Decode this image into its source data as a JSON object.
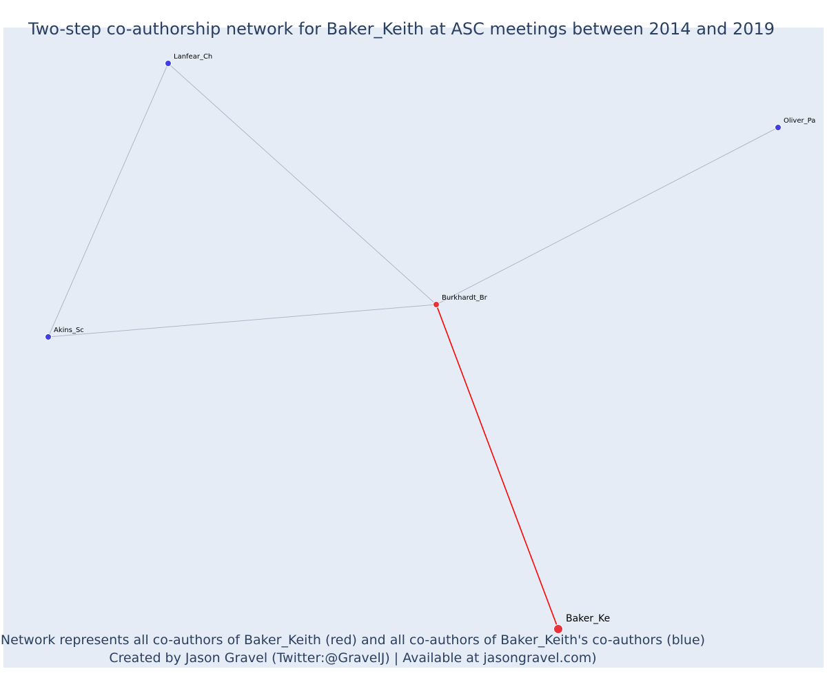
{
  "title": "Two-step co-authorship network for Baker_Keith at ASC meetings between 2014 and 2019",
  "caption": {
    "line1": "Network represents all co-authors of Baker_Keith (red) and all co-authors of Baker_Keith's co-authors (blue)",
    "line2": "Created by Jason Gravel (Twitter:@GravelJ) | Available at jasongravel.com)"
  },
  "colors": {
    "background": "#e5ecf6",
    "text": "#2a3f5f",
    "red_node": "#e8323c",
    "blue_node": "#3f3fdf",
    "red_edge": "#ff0000",
    "gray_edge": "#b4b4c8"
  },
  "chart_data": {
    "type": "network",
    "nodes": [
      {
        "id": "Baker_Ke",
        "label": "Baker_Ke",
        "group": "red",
        "role": "focal"
      },
      {
        "id": "Burkhardt_Br",
        "label": "Burkhardt_Br",
        "group": "red",
        "role": "co-author"
      },
      {
        "id": "Lanfear_Ch",
        "label": "Lanfear_Ch",
        "group": "blue",
        "role": "second-step"
      },
      {
        "id": "Oliver_Pa",
        "label": "Oliver_Pa",
        "group": "blue",
        "role": "second-step"
      },
      {
        "id": "Akins_Sc",
        "label": "Akins_Sc",
        "group": "blue",
        "role": "second-step"
      }
    ],
    "edges": [
      {
        "source": "Baker_Ke",
        "target": "Burkhardt_Br",
        "color": "red"
      },
      {
        "source": "Burkhardt_Br",
        "target": "Lanfear_Ch",
        "color": "gray"
      },
      {
        "source": "Burkhardt_Br",
        "target": "Oliver_Pa",
        "color": "gray"
      },
      {
        "source": "Burkhardt_Br",
        "target": "Akins_Sc",
        "color": "gray"
      },
      {
        "source": "Lanfear_Ch",
        "target": "Akins_Sc",
        "color": "gray"
      }
    ]
  }
}
